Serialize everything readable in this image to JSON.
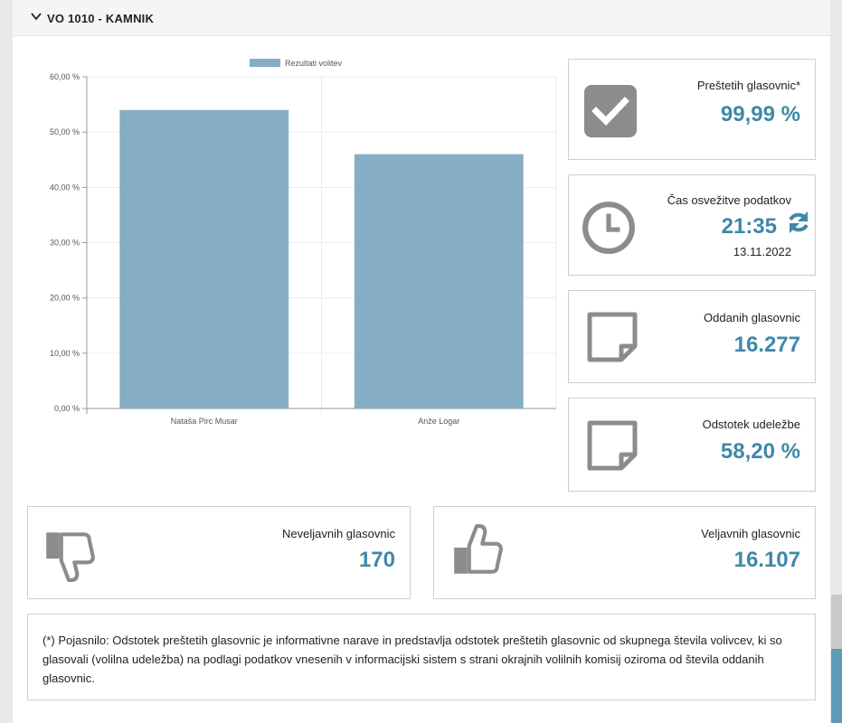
{
  "panel": {
    "title": "VO 1010 - KAMNIK"
  },
  "chart_data": {
    "type": "bar",
    "categories": [
      "Nataša Pirc Musar",
      "Anže Logar"
    ],
    "series": [
      {
        "name": "Rezultati volitev",
        "values": [
          54.0,
          46.0
        ]
      }
    ],
    "ylim": [
      0,
      60
    ],
    "yticks": [
      "0,00 %",
      "10,00 %",
      "20,00 %",
      "30,00 %",
      "40,00 %",
      "50,00 %",
      "60,00 %"
    ],
    "grid": true,
    "legend": "top",
    "bar_color": "#85aec4"
  },
  "cards": {
    "prestetih": {
      "label": "Preštetih glasovnic*",
      "value": "99,99 %"
    },
    "cas": {
      "label": "Čas osvežitve podatkov",
      "value": "21:35",
      "date": "13.11.2022"
    },
    "oddanih": {
      "label": "Oddanih glasovnic",
      "value": "16.277"
    },
    "udelezba": {
      "label": "Odstotek udeležbe",
      "value": "58,20 %"
    },
    "neveljavnih": {
      "label": "Neveljavnih glasovnic",
      "value": "170"
    },
    "veljavnih": {
      "label": "Veljavnih glasovnic",
      "value": "16.107"
    }
  },
  "footnote": "(*) Pojasnilo: Odstotek preštetih glasovnic je informativne narave in predstavlja odstotek preštetih glasovnic od skupnega števila volivcev, ki so glasovali (volilna udeležba) na podlagi podatkov vnesenih v informacijski sistem s strani okrajnih volilnih komisij oziroma od števila oddanih glasovnic.",
  "colors": {
    "accent": "#3f88a8",
    "icon_gray": "#8c8c8c",
    "border": "#cfcfcf"
  },
  "icons": [
    "chevron-down-icon",
    "checkbox-checked-icon",
    "clock-icon",
    "refresh-icon",
    "sticky-note-icon",
    "thumbs-down-icon",
    "thumbs-up-icon"
  ]
}
